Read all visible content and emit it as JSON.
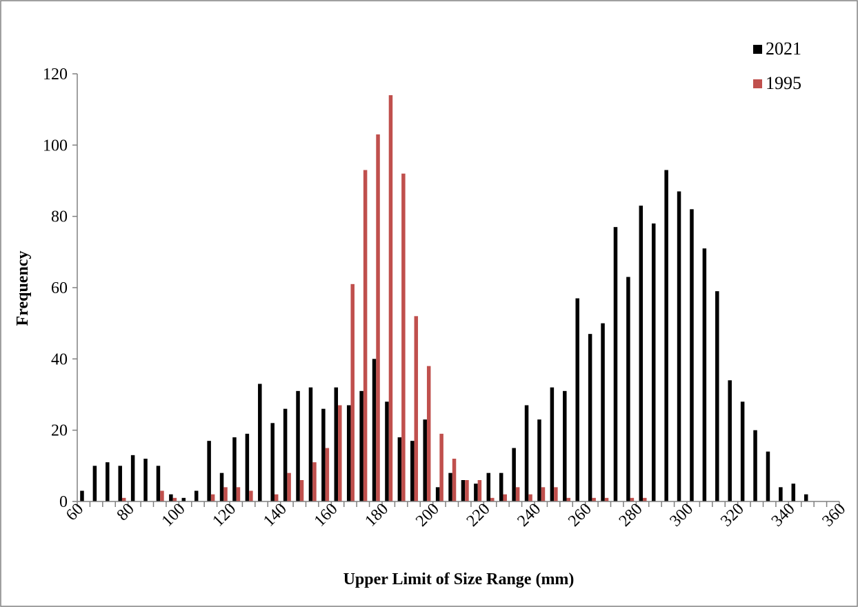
{
  "chart_data": {
    "type": "bar",
    "xlabel": "Upper Limit of Size Range (mm)",
    "ylabel": "Frequency",
    "ylim": [
      0,
      120
    ],
    "y_ticks": [
      0,
      20,
      40,
      60,
      80,
      100,
      120
    ],
    "x_tick_labels": [
      "60",
      "80",
      "100",
      "120",
      "140",
      "160",
      "180",
      "200",
      "220",
      "240",
      "260",
      "280",
      "300",
      "320",
      "340",
      "360"
    ],
    "categories": [
      60,
      65,
      70,
      75,
      80,
      85,
      90,
      95,
      100,
      105,
      110,
      115,
      120,
      125,
      130,
      135,
      140,
      145,
      150,
      155,
      160,
      165,
      170,
      175,
      180,
      185,
      190,
      195,
      200,
      205,
      210,
      215,
      220,
      225,
      230,
      235,
      240,
      245,
      250,
      255,
      260,
      265,
      270,
      275,
      280,
      285,
      290,
      295,
      300,
      305,
      310,
      315,
      320,
      325,
      330,
      335,
      340,
      345,
      350,
      355
    ],
    "series": [
      {
        "name": "2021",
        "color": "#000000",
        "values": [
          3,
          10,
          11,
          10,
          13,
          12,
          10,
          2,
          1,
          3,
          17,
          8,
          18,
          19,
          33,
          22,
          26,
          31,
          32,
          26,
          32,
          27,
          31,
          40,
          28,
          18,
          17,
          23,
          4,
          8,
          6,
          5,
          8,
          8,
          15,
          27,
          23,
          32,
          31,
          57,
          47,
          50,
          77,
          63,
          83,
          78,
          93,
          87,
          82,
          71,
          59,
          34,
          28,
          20,
          14,
          4,
          5,
          2,
          0,
          0
        ]
      },
      {
        "name": "1995",
        "color": "#c0504d",
        "values": [
          0,
          0,
          0,
          1,
          0,
          0,
          3,
          1,
          0,
          0,
          2,
          4,
          4,
          3,
          0,
          2,
          8,
          6,
          11,
          15,
          27,
          61,
          93,
          103,
          114,
          92,
          52,
          38,
          19,
          12,
          6,
          6,
          1,
          2,
          4,
          2,
          4,
          4,
          1,
          0,
          1,
          1,
          0,
          1,
          1,
          0,
          0,
          0,
          0,
          0,
          0,
          0,
          0,
          0,
          0,
          0,
          0,
          0,
          0,
          0
        ]
      }
    ],
    "legend": {
      "position": "top-right",
      "entries": [
        "2021",
        "1995"
      ]
    },
    "grid": false
  }
}
